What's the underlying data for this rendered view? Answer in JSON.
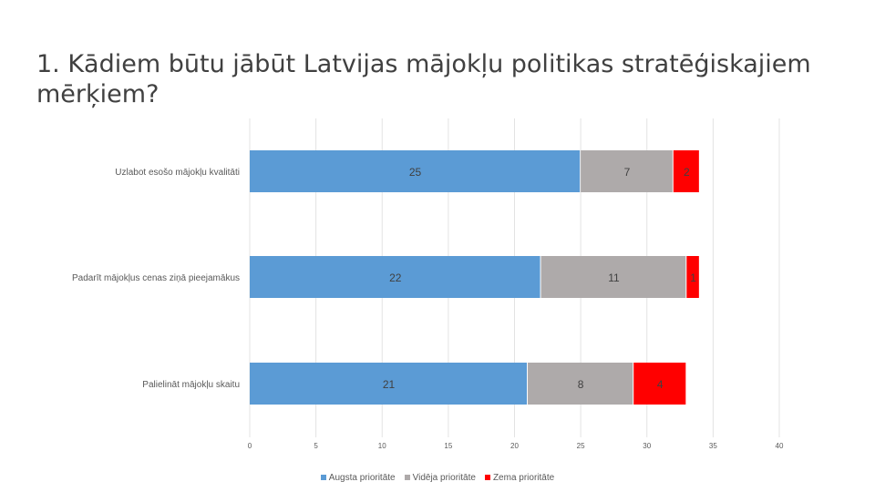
{
  "title": "1. Kādiem būtu jābūt Latvijas mājokļu politikas stratēģiskajiem mērķiem?",
  "chart_data": {
    "type": "bar",
    "orientation": "horizontal",
    "stacked": true,
    "categories": [
      "Uzlabot esošo mājokļu kvalitāti",
      "Padarīt mājokļus cenas ziņā pieejamākus",
      "Palielināt mājokļu skaitu"
    ],
    "series": [
      {
        "name": "Augsta prioritāte",
        "color": "#5B9BD5",
        "values": [
          25,
          22,
          21
        ]
      },
      {
        "name": "Vidēja prioritāte",
        "color": "#AEAAAA",
        "values": [
          7,
          11,
          8
        ]
      },
      {
        "name": "Zema prioritāte",
        "color": "#FF0000",
        "values": [
          2,
          1,
          4
        ]
      }
    ],
    "xlim": [
      0,
      40
    ],
    "xticks": [
      0,
      5,
      10,
      15,
      20,
      25,
      30,
      35,
      40
    ],
    "grid": true,
    "legend": "bottom",
    "data_labels": true
  }
}
